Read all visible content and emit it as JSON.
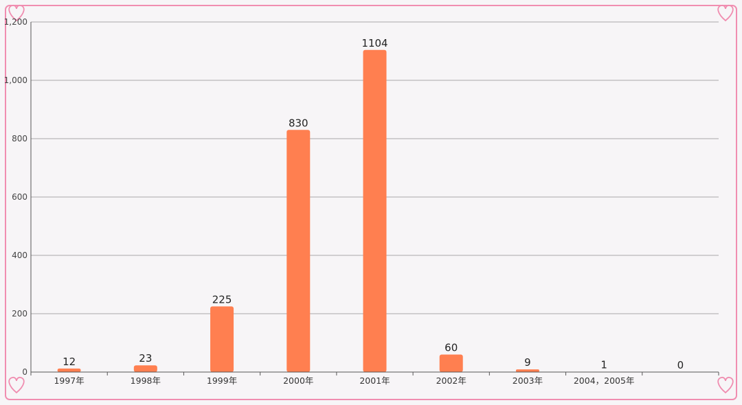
{
  "colors": {
    "bar": "#ff7f50",
    "frame": "#f08db0",
    "grid": "#a8a8a8",
    "axis": "#555555",
    "background": "#f7f5f7"
  },
  "chart_data": {
    "type": "bar",
    "categories": [
      "1997年",
      "1998年",
      "1999年",
      "2000年",
      "2001年",
      "2002年",
      "2003年",
      "2004，2005年",
      ""
    ],
    "values": [
      12,
      23,
      225,
      830,
      1104,
      60,
      9,
      1,
      0
    ],
    "data_labels": [
      "12",
      "23",
      "225",
      "830",
      "1104",
      "60",
      "9",
      "1",
      "0"
    ],
    "y_ticks": [
      0,
      200,
      400,
      600,
      800,
      1000,
      1200
    ],
    "y_tick_labels": [
      "0",
      "200",
      "400",
      "600",
      "800",
      "1,000",
      "1,200"
    ],
    "ylim": [
      0,
      1200
    ],
    "grid": true,
    "legend": "none",
    "title": "",
    "xlabel": "",
    "ylabel": ""
  }
}
